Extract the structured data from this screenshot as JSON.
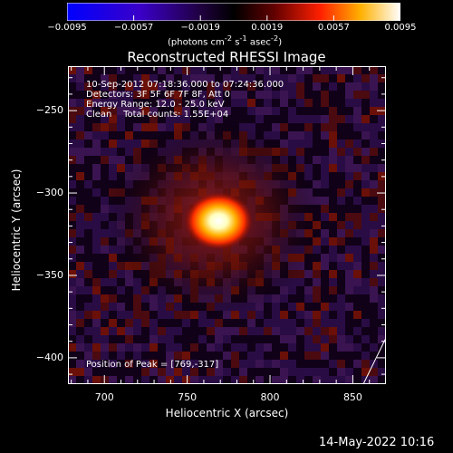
{
  "chart_data": {
    "type": "heatmap",
    "title": "Reconstructed RHESSI Image",
    "xlabel": "Heliocentric X (arcsec)",
    "ylabel": "Heliocentric Y (arcsec)",
    "xlim": [
      678,
      870
    ],
    "ylim": [
      -416,
      -223
    ],
    "x_ticks": [
      700,
      750,
      800,
      850
    ],
    "y_ticks": [
      -250,
      -300,
      -350,
      -400
    ],
    "colorbar": {
      "min": -0.0095,
      "max": 0.0095,
      "ticks": [
        "-0.0095",
        "-0.0057",
        "-0.0019",
        "0.0019",
        "0.0057",
        "0.0095"
      ],
      "units_text": "(photons cm",
      "units_exp1": "-2",
      "units_mid": " s",
      "units_exp2": "-1",
      "units_end": " asec",
      "units_exp3": "-2",
      "units_close": ")",
      "colormap": "blue-purple-black-red-yellow-white"
    },
    "source_peak": {
      "x": 769,
      "y": -317
    },
    "annotations": {
      "time_range": "10-Sep-2012 07:18:36.000 to 07:24:36.000",
      "detectors": "Detectors: 3F 5F 6F 7F 8F, Att 0",
      "energy_range": "Energy Range: 12.0 - 25.0 keV",
      "method_counts": "Clean    Total counts: 1.55E+04",
      "position_of_peak": "Position of Peak = [769,-317]"
    },
    "timestamp": "14-May-2022 10:16"
  }
}
